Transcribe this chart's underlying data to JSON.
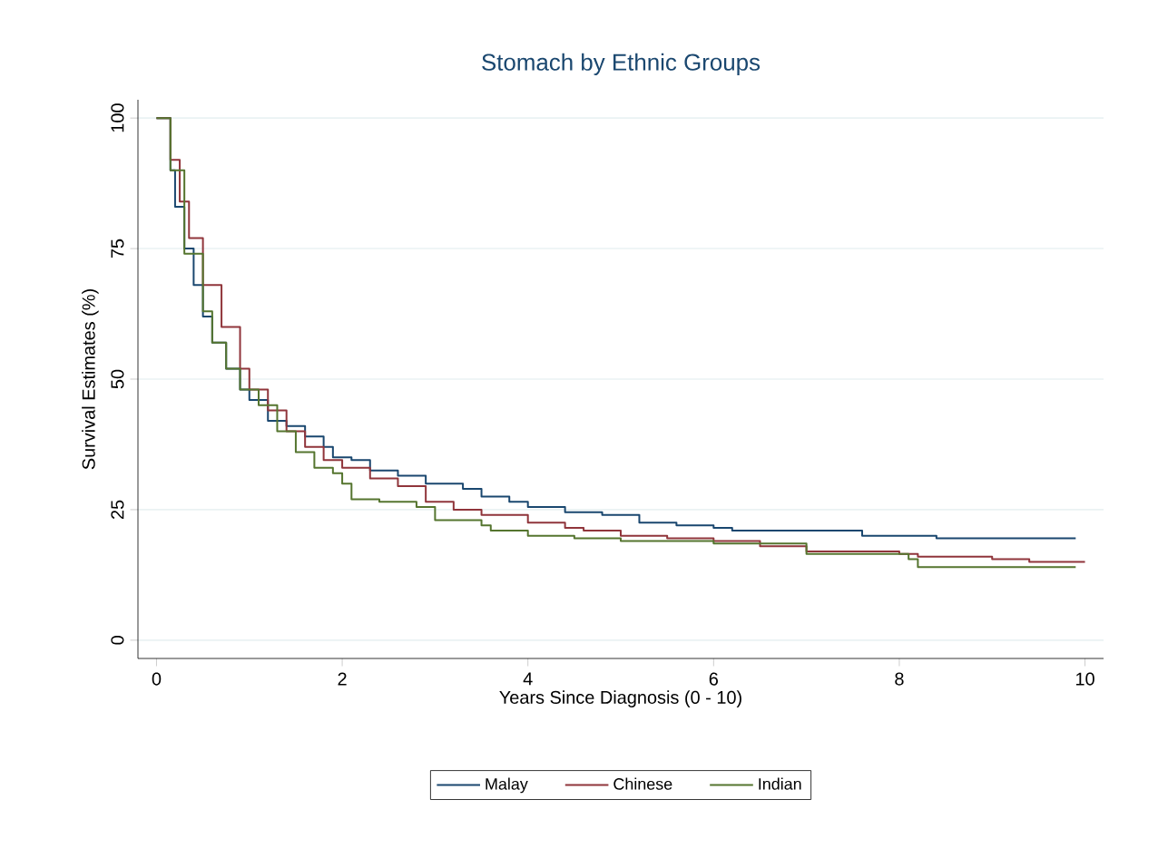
{
  "chart_data": {
    "type": "step",
    "title": "Stomach by Ethnic Groups",
    "xlabel": "Years Since Diagnosis (0 - 10)",
    "ylabel": "Survival Estimates (%)",
    "xlim": [
      -0.2,
      10.2
    ],
    "ylim": [
      -3.5,
      103.5
    ],
    "xticks": [
      0,
      2,
      4,
      6,
      8,
      10
    ],
    "yticks": [
      0,
      25,
      50,
      75,
      100
    ],
    "grid": "y",
    "legend": "bottom",
    "series": [
      {
        "name": "Malay",
        "color": "#1a476f",
        "x": [
          0,
          0.08,
          0.15,
          0.2,
          0.3,
          0.4,
          0.5,
          0.6,
          0.75,
          0.9,
          1.0,
          1.2,
          1.4,
          1.6,
          1.8,
          1.9,
          2.1,
          2.3,
          2.6,
          2.9,
          3.3,
          3.5,
          3.8,
          4.0,
          4.4,
          4.8,
          5.2,
          5.6,
          6.0,
          6.2,
          7.5,
          7.6,
          8.4,
          9.9
        ],
        "values": [
          100,
          100,
          90,
          83,
          75,
          68,
          62,
          57,
          52,
          48,
          46,
          42,
          41,
          39,
          37,
          35,
          34.5,
          32.5,
          31.5,
          30,
          29,
          27.5,
          26.5,
          25.5,
          24.5,
          24,
          22.5,
          22,
          21.5,
          21,
          21,
          20,
          19.5,
          19.5
        ]
      },
      {
        "name": "Chinese",
        "color": "#90353b",
        "x": [
          0,
          0.08,
          0.15,
          0.25,
          0.35,
          0.5,
          0.7,
          0.9,
          1.0,
          1.2,
          1.4,
          1.6,
          1.8,
          2.0,
          2.3,
          2.6,
          2.9,
          3.2,
          3.5,
          4.0,
          4.4,
          4.6,
          5.0,
          5.5,
          6.0,
          6.5,
          7.0,
          8.0,
          8.2,
          9.0,
          9.4,
          10.0
        ],
        "values": [
          100,
          100,
          92,
          84,
          77,
          68,
          60,
          52,
          48,
          44,
          40,
          37,
          34.5,
          33,
          31,
          29.5,
          26.5,
          25,
          24,
          22.5,
          21.5,
          21,
          20,
          19.5,
          19,
          18,
          17,
          16.5,
          16,
          15.5,
          15,
          15
        ]
      },
      {
        "name": "Indian",
        "color": "#55752f",
        "x": [
          0,
          0.08,
          0.15,
          0.3,
          0.5,
          0.6,
          0.75,
          0.9,
          1.1,
          1.3,
          1.5,
          1.7,
          1.9,
          2.0,
          2.1,
          2.4,
          2.8,
          3.0,
          3.5,
          3.6,
          4.0,
          4.5,
          5.0,
          6.0,
          7.0,
          7.0,
          8.0,
          8.1,
          8.2,
          9.9
        ],
        "values": [
          100,
          100,
          90,
          74,
          63,
          57,
          52,
          48,
          45,
          40,
          36,
          33,
          32,
          30,
          27,
          26.5,
          25.5,
          23,
          22,
          21,
          20,
          19.5,
          19,
          18.5,
          18,
          16.5,
          16.5,
          15.5,
          14,
          14
        ]
      }
    ]
  }
}
